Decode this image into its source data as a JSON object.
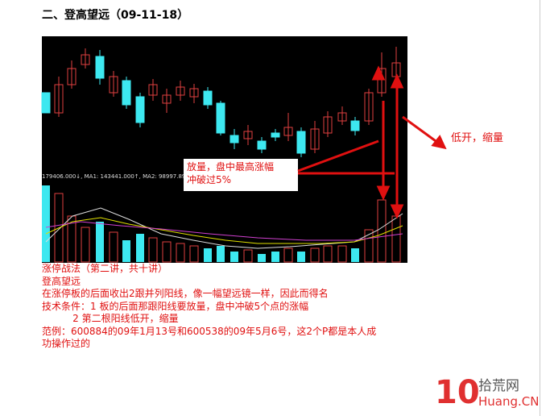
{
  "header": {
    "title": "二、登高望远（09-11-18）"
  },
  "chart_image": {
    "indicator_line": "179406.000↓, MA1: 143441.000↑, MA2: 98997.89",
    "annotations": [
      {
        "lines": [
          "放量，盘中最高涨幅",
          "冲破过5%"
        ]
      },
      {
        "lines": [
          "低开，缩量"
        ]
      }
    ]
  },
  "body": {
    "lines": [
      "涨停战法（第二讲，共十讲）",
      "登高望远",
      "在涨停板的后面收出2跟并列阳线，像一幅望远镜一样，因此而得名",
      "技术条件：1 板的后面那跟阳线要放量，盘中冲破5个点的涨幅",
      "          2 第二根阳线低开，缩量",
      "范例：600884的09年1月13号和600538的09年5月6号，这2个P都是本人成",
      "功操作过的"
    ]
  },
  "watermark": {
    "logo": "10",
    "name": "拾荒网",
    "url": "Huang.CN"
  }
}
